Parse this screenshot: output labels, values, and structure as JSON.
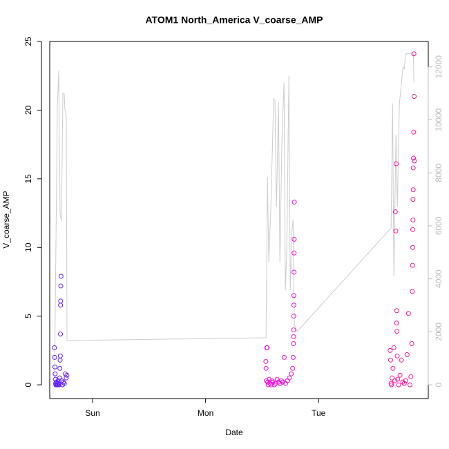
{
  "chart_data": {
    "type": "scatter",
    "title": "ATOM1 North_America V_coarse_AMP",
    "xlabel": "Date",
    "ylabel": "V_coarse_AMP",
    "xlim": [
      -9.1,
      71.3
    ],
    "xticks": [
      {
        "value": 0,
        "label": "Sun"
      },
      {
        "value": 24,
        "label": "Mon"
      },
      {
        "value": 48,
        "label": "Tue"
      }
    ],
    "ylim": [
      -1,
      25
    ],
    "yticks": [
      0,
      5,
      10,
      15,
      20,
      25
    ],
    "y2lim": [
      -520,
      12960
    ],
    "y2ticks": [
      0,
      2000,
      4000,
      6000,
      8000,
      10000,
      12000
    ],
    "y2color": "#bbbbbb",
    "color_gradient": [
      "#5b1cff",
      "#e010f0",
      "#ff1493"
    ],
    "series": [
      {
        "name": "V_coarse_AMP",
        "x": [
          -8.1,
          -8.05,
          -8.0,
          -7.95,
          -7.9,
          -7.85,
          -7.8,
          -7.7,
          -7.6,
          -7.5,
          -7.4,
          -7.3,
          -7.2,
          -7.1,
          -7.0,
          -6.95,
          -6.9,
          -6.85,
          -6.82,
          -6.8,
          -6.78,
          -6.75,
          -6.7,
          -6.6,
          -6.4,
          -6.2,
          -6.0,
          -5.8,
          -5.6,
          -5.45,
          36.8,
          36.85,
          36.9,
          37.0,
          37.1,
          37.2,
          37.3,
          37.5,
          37.7,
          37.9,
          38.1,
          38.3,
          38.6,
          38.9,
          39.2,
          39.5,
          39.8,
          40.1,
          40.4,
          40.7,
          41.0,
          41.4,
          41.8,
          42.2,
          42.5,
          42.6,
          42.65,
          42.7,
          42.7,
          42.72,
          42.75,
          42.75,
          42.78,
          42.8,
          42.82,
          42.85,
          63.2,
          63.3,
          63.4,
          63.5,
          63.6,
          63.8,
          64.0,
          64.2,
          64.3,
          64.4,
          64.5,
          64.55,
          64.6,
          64.65,
          64.7,
          64.8,
          65.0,
          65.3,
          65.6,
          65.9,
          66.2,
          66.5,
          66.8,
          67.1,
          67.4,
          67.6,
          67.8,
          67.9,
          67.95,
          68.0,
          68.0,
          68.05,
          68.05,
          68.1,
          68.1,
          68.15,
          68.2,
          68.25,
          68.3,
          68.35
        ],
        "values": [
          2.7,
          2.0,
          1.3,
          0.8,
          0.4,
          0.1,
          0,
          0.2,
          0,
          0.1,
          0,
          0.3,
          0.1,
          0,
          0.5,
          1.2,
          1.8,
          2.1,
          3.7,
          5.8,
          6.1,
          7.2,
          7.9,
          0.3,
          0,
          0.2,
          0.1,
          0.8,
          0.5,
          0.7,
          1.7,
          1.2,
          0.3,
          2.7,
          2.7,
          0.2,
          0,
          0.4,
          0.1,
          0,
          0.3,
          0.2,
          0,
          0.1,
          0.4,
          0.2,
          0.1,
          0.3,
          0.2,
          2.0,
          0.1,
          0.3,
          0.5,
          0.8,
          1.2,
          2.0,
          3.0,
          3.5,
          4.0,
          5.0,
          5.8,
          6.5,
          8.2,
          9.6,
          10.6,
          13.3,
          2.5,
          1.8,
          0.1,
          0,
          0.5,
          1.2,
          2.7,
          0.3,
          12.6,
          11.2,
          16.1,
          4.5,
          5.4,
          3.9,
          2.1,
          0.4,
          0,
          0.7,
          1.8,
          0.2,
          0.1,
          0.3,
          2.2,
          5.2,
          0,
          0.6,
          3.0,
          6.8,
          8.7,
          10.0,
          11.3,
          12.0,
          13.5,
          14.2,
          15.8,
          16.5,
          18.4,
          24.1,
          21.0,
          16.3
        ]
      }
    ],
    "line": {
      "axis": "y2",
      "color": "#cccccc",
      "x": [
        -8.07,
        -7.49,
        -7.19,
        -6.9,
        -6.61,
        -6.31,
        -6.02,
        -5.87,
        -5.72,
        -5.58,
        -5.43,
        36.84,
        37.14,
        37.43,
        37.87,
        38.46,
        38.75,
        39.05,
        39.49,
        39.78,
        40.22,
        40.66,
        40.95,
        41.25,
        41.69,
        41.98,
        42.28,
        42.57,
        42.86,
        43.45,
        63.41,
        63.71,
        64.0,
        64.44,
        64.73,
        65.17,
        65.61,
        65.91,
        66.2,
        66.5,
        68.11,
        68.26
      ],
      "values": [
        235,
        10488,
        11845,
        6444,
        6183,
        11010,
        10984,
        10358,
        10358,
        10097,
        1670,
        1774,
        7827,
        4618,
        6705,
        10801,
        10723,
        6705,
        10671,
        4618,
        9314,
        11401,
        3574,
        5140,
        11662,
        3574,
        5662,
        6236,
        2270,
        2009,
        5923,
        10619,
        4096,
        9445,
        6705,
        10619,
        11401,
        12001,
        11923,
        12497,
        12497,
        11401
      ]
    }
  }
}
